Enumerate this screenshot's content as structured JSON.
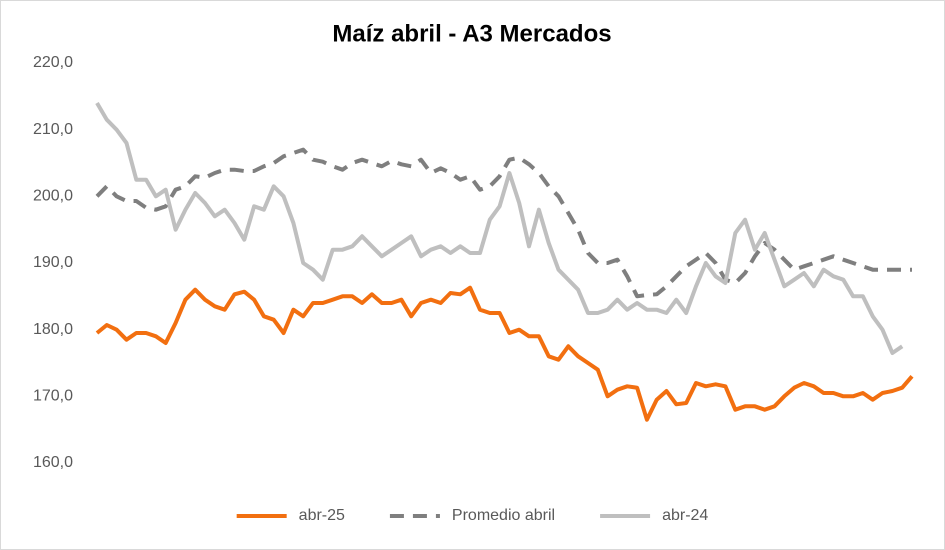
{
  "chart_data": {
    "type": "line",
    "title": "Maíz abril - A3 Mercados",
    "categories": [
      null,
      null,
      null,
      null,
      null,
      null,
      null,
      null,
      null,
      null,
      null,
      null,
      null,
      null,
      null,
      null,
      null,
      null,
      null,
      null,
      null,
      null,
      null,
      null,
      null,
      null,
      null,
      null,
      null,
      null,
      null,
      null,
      null,
      null,
      null,
      null,
      null,
      null,
      null,
      null,
      null,
      null,
      null,
      null,
      null,
      null,
      null,
      null,
      null,
      null,
      null,
      null,
      null,
      null,
      null,
      null,
      null,
      null,
      null,
      null,
      null,
      null,
      null,
      null,
      null,
      null,
      null,
      null,
      null,
      null,
      null,
      null,
      null,
      null,
      null,
      null,
      null,
      null,
      null,
      null,
      null,
      null,
      null,
      null
    ],
    "series": [
      {
        "name": "abr-25",
        "color": "#f26f10",
        "dash": false,
        "values": [
          179.5,
          180.7,
          180,
          178.5,
          179.5,
          179.5,
          179,
          178,
          181,
          184.5,
          186,
          184.5,
          183.5,
          183,
          185.3,
          185.7,
          184.5,
          182,
          181.5,
          179.5,
          183,
          182,
          184,
          184,
          184.5,
          185,
          185,
          184,
          185.3,
          184,
          184,
          184.5,
          182,
          184,
          184.5,
          184,
          185.5,
          185.3,
          186.3,
          183,
          182.5,
          182.5,
          179.5,
          180,
          179,
          179,
          176,
          175.5,
          177.5,
          176,
          175,
          174,
          170,
          171,
          171.5,
          171.3,
          166.5,
          169.5,
          170.8,
          168.8,
          169,
          172,
          171.5,
          171.8,
          171.5,
          168,
          168.5,
          168.5,
          168,
          168.5,
          170,
          171.3,
          172,
          171.5,
          170.5,
          170.5,
          170,
          170,
          170.5,
          169.5,
          170.5,
          170.8,
          171.3,
          173
        ]
      },
      {
        "name": "Promedio abril",
        "color": "#7f7f7f",
        "dash": true,
        "values": [
          200,
          201.5,
          200,
          199.3,
          199.3,
          198.3,
          198,
          198.5,
          201,
          201.5,
          203,
          202.8,
          203.5,
          204,
          204,
          203.8,
          203.8,
          204.5,
          205,
          206,
          206.5,
          207,
          205.5,
          205.2,
          204.5,
          204,
          205,
          205.5,
          205,
          204.5,
          205.3,
          204.8,
          204.5,
          205.5,
          203.5,
          204.2,
          203.5,
          202.5,
          203,
          201,
          201.5,
          203,
          205.5,
          205.8,
          204.8,
          203.5,
          201.5,
          200,
          197.5,
          195,
          191.5,
          190,
          190,
          190.5,
          188,
          185,
          185.2,
          185.3,
          186.5,
          188,
          189.5,
          190.5,
          191.5,
          190,
          187.5,
          187,
          188.5,
          191,
          193,
          192,
          190.5,
          189,
          189.5,
          190,
          190.5,
          191,
          190.5,
          190,
          189.5,
          189,
          189,
          189,
          189,
          189
        ]
      },
      {
        "name": "abr-24",
        "color": "#bfbfbf",
        "dash": false,
        "values": [
          214,
          211.5,
          210,
          208,
          202.5,
          202.5,
          200,
          201,
          195,
          198,
          200.5,
          199,
          197,
          198,
          196,
          193.5,
          198.5,
          198,
          201.5,
          200,
          196,
          190,
          189,
          187.5,
          192,
          192,
          192.5,
          194,
          192.5,
          191,
          192,
          193,
          194,
          191,
          192,
          192.5,
          191.5,
          192.5,
          191.5,
          191.5,
          196.5,
          198.5,
          203.5,
          199,
          192.5,
          198,
          193,
          189,
          187.5,
          186,
          182.5,
          182.5,
          183,
          184.5,
          183,
          184,
          183,
          183,
          182.5,
          184.5,
          182.5,
          186.5,
          190,
          188,
          187,
          194.5,
          196.5,
          192,
          194.5,
          190.5,
          186.5,
          187.5,
          188.5,
          186.5,
          189,
          188,
          187.5,
          185,
          185,
          182,
          180,
          176.5,
          177.5,
          null
        ]
      }
    ],
    "ylim": [
      160,
      220
    ],
    "yticks": [
      {
        "value": 160,
        "label": "160,0"
      },
      {
        "value": 170,
        "label": "170,0"
      },
      {
        "value": 180,
        "label": "180,0"
      },
      {
        "value": 190,
        "label": "190,0"
      },
      {
        "value": 200,
        "label": "200,0"
      },
      {
        "value": 210,
        "label": "210,0"
      },
      {
        "value": 220,
        "label": "220,0"
      }
    ],
    "grid": false,
    "legend": "bottom"
  }
}
